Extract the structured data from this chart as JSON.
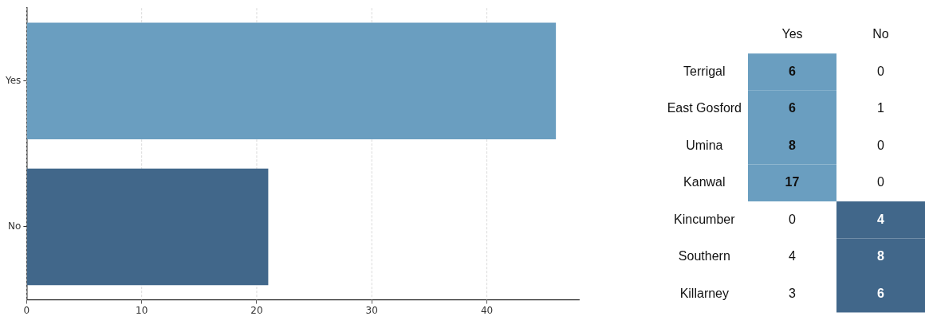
{
  "chart_data": [
    {
      "type": "bar",
      "orientation": "horizontal",
      "categories": [
        "Yes",
        "No"
      ],
      "values": [
        46,
        21
      ],
      "colors": [
        "#6a9ec0",
        "#41678a"
      ],
      "xlim": [
        0,
        48
      ],
      "xticks": [
        0,
        10,
        20,
        30,
        40
      ],
      "grid": "x"
    },
    {
      "type": "heatmap",
      "data_labels": true,
      "categories": [
        "Yes",
        "No"
      ],
      "y_categories": [
        "Terrigal",
        "East Gosford",
        "Umina",
        "Kanwal",
        "Kincumber",
        "Southern",
        "Killarney"
      ],
      "cells": [
        [
          6,
          0
        ],
        [
          6,
          1
        ],
        [
          8,
          0
        ],
        [
          17,
          0
        ],
        [
          0,
          4
        ],
        [
          4,
          8
        ],
        [
          3,
          6
        ]
      ],
      "colors": [
        [
          "#6a9ec0",
          null
        ],
        [
          "#6a9ec0",
          null
        ],
        [
          "#6a9ec0",
          null
        ],
        [
          "#6a9ec0",
          null
        ],
        [
          null,
          "#41678a"
        ],
        [
          null,
          "#41678a"
        ],
        [
          null,
          "#41678a"
        ]
      ]
    }
  ]
}
